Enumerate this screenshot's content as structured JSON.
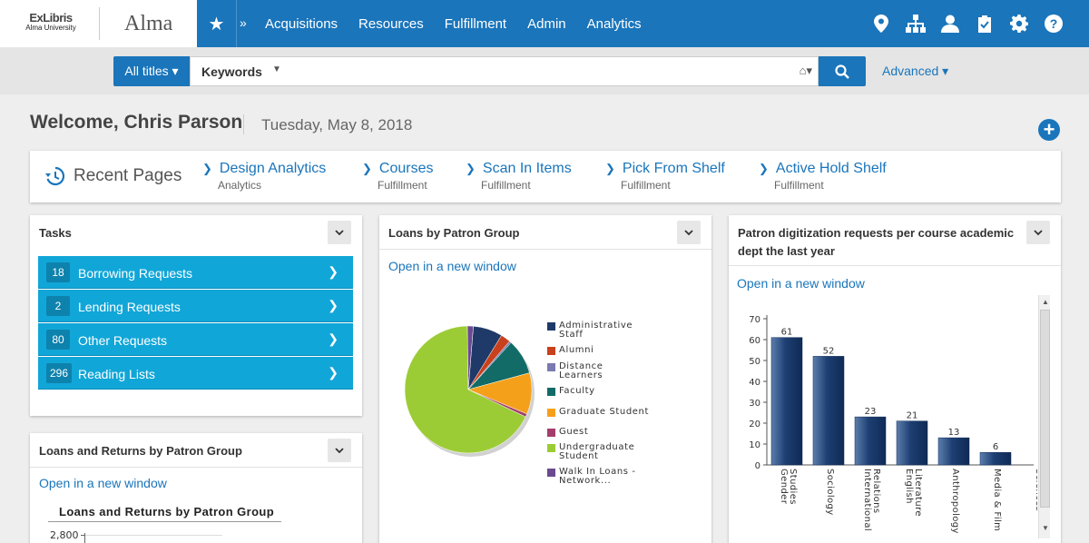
{
  "brand": {
    "logo_name": "ExLibris",
    "logo_university": "Alma University",
    "app_name": "Alma"
  },
  "topnav": {
    "items": [
      "Acquisitions",
      "Resources",
      "Fulfillment",
      "Admin",
      "Analytics"
    ]
  },
  "top_icons": [
    "location-icon",
    "org-chart-icon",
    "user-icon",
    "clipboard-icon",
    "gear-icon",
    "help-icon"
  ],
  "search": {
    "scope": "All titles ▾",
    "field": "Keywords",
    "advanced": "Advanced ▾"
  },
  "welcome": {
    "greeting": "Welcome, Chris Parson",
    "date": "Tuesday, May 8, 2018"
  },
  "recent": {
    "title": "Recent Pages",
    "items": [
      {
        "name": "Design Analytics",
        "sub": "Analytics"
      },
      {
        "name": "Courses",
        "sub": "Fulfillment"
      },
      {
        "name": "Scan In Items",
        "sub": "Fulfillment"
      },
      {
        "name": "Pick From Shelf",
        "sub": "Fulfillment"
      },
      {
        "name": "Active Hold Shelf",
        "sub": "Fulfillment"
      }
    ]
  },
  "tasks": {
    "title": "Tasks",
    "items": [
      {
        "count": "18",
        "label": "Borrowing Requests"
      },
      {
        "count": "2",
        "label": "Lending Requests"
      },
      {
        "count": "80",
        "label": "Other Requests"
      },
      {
        "count": "296",
        "label": "Reading Lists"
      }
    ]
  },
  "loans_returns": {
    "title": "Loans and Returns by Patron Group",
    "link": "Open in a new window",
    "chart_title": "Loans and Returns by Patron Group",
    "first_tick": "2,800"
  },
  "loans_patron": {
    "title": "Loans by Patron Group",
    "link": "Open in a new window"
  },
  "digitization": {
    "title": "Patron digitization requests per course academic dept the last year",
    "link": "Open in a new window"
  },
  "colors": {
    "brand_blue": "#1a75bb",
    "task_cyan": "#11a6d8"
  },
  "chart_data": [
    {
      "type": "pie",
      "legend": [
        "Administrative Staff",
        "Alumni",
        "Distance Learners",
        "Faculty",
        "Graduate Student",
        "Guest",
        "Undergraduate Student",
        "Walk In Loans - Network..."
      ],
      "legend_display": [
        [
          "Administrative",
          "Staff"
        ],
        [
          "Alumni"
        ],
        [
          "Distance",
          "Learners"
        ],
        [
          "Faculty"
        ],
        [
          "Graduate Student"
        ],
        [
          "Guest"
        ],
        [
          "Undergraduate",
          "Student"
        ],
        [
          "Walk In Loans -",
          "Network..."
        ]
      ],
      "colors": [
        "#1f3a68",
        "#c8411c",
        "#7a7ab0",
        "#126b66",
        "#f5a01a",
        "#a33d6d",
        "#9ccc35",
        "#6b4a8e"
      ],
      "values": [
        7.5,
        2.5,
        0.5,
        9,
        10.5,
        0.8,
        67.7,
        1.5
      ]
    },
    {
      "type": "bar",
      "categories": [
        "Gender Studies",
        "Sociology",
        "International Relations",
        "English Literature",
        "Anthropology",
        "Media & Film",
        "Sciences"
      ],
      "category_display": [
        [
          "Gender",
          "Studies"
        ],
        [
          "Sociology"
        ],
        [
          "International",
          "Relations"
        ],
        [
          "English",
          "Literature"
        ],
        [
          "Anthropology"
        ],
        [
          "Media & Film"
        ],
        [
          "Sciences"
        ]
      ],
      "values": [
        61,
        52,
        23,
        21,
        13,
        6,
        null
      ],
      "ylim": [
        0,
        70
      ],
      "yticks": [
        0,
        10,
        20,
        30,
        40,
        50,
        60,
        70
      ]
    }
  ]
}
